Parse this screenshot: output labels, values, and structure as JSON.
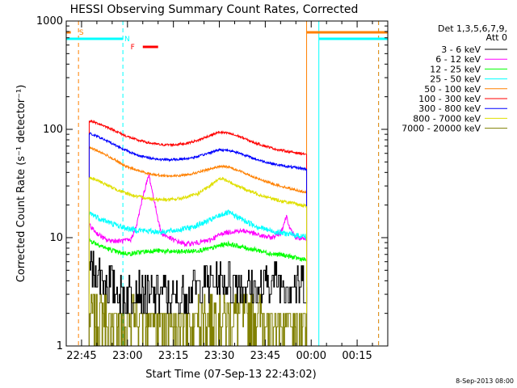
{
  "chart_data": {
    "type": "line",
    "title": "HESSI Observing Summary Count Rates, Corrected",
    "xlabel": "Start Time (07-Sep-13 22:43:02)",
    "ylabel": "Corrected Count Rate (s⁻¹ detector⁻¹)",
    "yscale": "log",
    "ylim": [
      1,
      1000
    ],
    "xlim_minutes": [
      -5,
      100
    ],
    "x_ticks": [
      "22:45",
      "23:00",
      "23:15",
      "23:30",
      "23:45",
      "00:00",
      "00:15"
    ],
    "x_tick_minutes": [
      0,
      15,
      30,
      45,
      60,
      75,
      90
    ],
    "y_ticks": [
      "1",
      "10",
      "100",
      "1000"
    ],
    "y_tick_values": [
      1,
      10,
      100,
      1000
    ],
    "legend_header": [
      "Det 1,3,5,6,7,9,",
      "Att 0"
    ],
    "legend_position": "right",
    "flag_labels": {
      "saa": "S",
      "night": "N",
      "flare": "F"
    },
    "flags": [
      {
        "label": "S",
        "color": "#ff8000",
        "start": -5,
        "end": -3.5
      },
      {
        "label": "N",
        "color": "#00ffff",
        "start": -5,
        "end": 13.5
      },
      {
        "label": "F",
        "color": "#ff0000",
        "start": 20,
        "end": 25
      },
      {
        "label": "S",
        "color": "#ff8000",
        "start": 73.5,
        "end": 100
      },
      {
        "label": "N",
        "color": "#00ffff",
        "start": 77.5,
        "end": 100
      }
    ],
    "vertical_markers": [
      {
        "color": "#ff8000",
        "minute": -1,
        "dashed": true
      },
      {
        "color": "#00ffff",
        "minute": 13.5,
        "dashed": true
      },
      {
        "color": "#ff8000",
        "minute": 73.5,
        "dashed": false
      },
      {
        "color": "#00ffff",
        "minute": 77.5,
        "dashed": false
      },
      {
        "color": "#00ffff",
        "minute": 97,
        "dashed": true
      },
      {
        "color": "#ff8000",
        "minute": 97,
        "dashed": true
      }
    ],
    "data_range_minutes": [
      2.5,
      73.5
    ],
    "series": [
      {
        "name": "3 - 6 keV",
        "color": "#000000",
        "noise": 0.28,
        "points": [
          [
            2.5,
            6
          ],
          [
            6,
            5
          ],
          [
            10,
            4
          ],
          [
            14,
            3.3
          ],
          [
            18,
            3.8
          ],
          [
            22,
            3.2
          ],
          [
            26,
            3.6
          ],
          [
            30,
            3
          ],
          [
            34,
            3.5
          ],
          [
            40,
            4.3
          ],
          [
            46,
            4.5
          ],
          [
            52,
            4.3
          ],
          [
            58,
            3.6
          ],
          [
            62,
            4.6
          ],
          [
            66,
            4.2
          ],
          [
            70,
            4.3
          ],
          [
            73.5,
            4
          ]
        ]
      },
      {
        "name": "6 - 12 keV",
        "color": "#ff00ff",
        "noise": 0.05,
        "points": [
          [
            2.5,
            13
          ],
          [
            5,
            11
          ],
          [
            8,
            9.5
          ],
          [
            12,
            9.3
          ],
          [
            16,
            9.5
          ],
          [
            18,
            13
          ],
          [
            20,
            24
          ],
          [
            22,
            38
          ],
          [
            24,
            20
          ],
          [
            26,
            11
          ],
          [
            30,
            9.5
          ],
          [
            34,
            8.7
          ],
          [
            38,
            9
          ],
          [
            42,
            9.5
          ],
          [
            46,
            11
          ],
          [
            50,
            11.5
          ],
          [
            54,
            11.5
          ],
          [
            58,
            10.5
          ],
          [
            62,
            10
          ],
          [
            65,
            11
          ],
          [
            67,
            16
          ],
          [
            68,
            12
          ],
          [
            70,
            10
          ],
          [
            73.5,
            9.5
          ]
        ]
      },
      {
        "name": "12 - 25 keV",
        "color": "#00ff00",
        "noise": 0.05,
        "points": [
          [
            2.5,
            9.5
          ],
          [
            8,
            8
          ],
          [
            12,
            7.3
          ],
          [
            16,
            7.1
          ],
          [
            20,
            7.4
          ],
          [
            24,
            7.6
          ],
          [
            30,
            7.4
          ],
          [
            36,
            7.5
          ],
          [
            42,
            7.9
          ],
          [
            46,
            8.6
          ],
          [
            48,
            8.8
          ],
          [
            50,
            8.5
          ],
          [
            54,
            8
          ],
          [
            58,
            7.6
          ],
          [
            62,
            7.1
          ],
          [
            66,
            6.9
          ],
          [
            70,
            6.5
          ],
          [
            73.5,
            6.2
          ]
        ]
      },
      {
        "name": "25 - 50 keV",
        "color": "#00ffff",
        "noise": 0.06,
        "points": [
          [
            2.5,
            17
          ],
          [
            6,
            15
          ],
          [
            10,
            13.5
          ],
          [
            14,
            12.3
          ],
          [
            18,
            11.8
          ],
          [
            22,
            11.5
          ],
          [
            26,
            11.3
          ],
          [
            30,
            11.6
          ],
          [
            36,
            12.5
          ],
          [
            42,
            14.5
          ],
          [
            46,
            16.5
          ],
          [
            48,
            17
          ],
          [
            50,
            16
          ],
          [
            54,
            14
          ],
          [
            58,
            12.5
          ],
          [
            62,
            11.5
          ],
          [
            66,
            11
          ],
          [
            70,
            10.5
          ],
          [
            73.5,
            10.3
          ]
        ]
      },
      {
        "name": "50 - 100 keV",
        "color": "#ff8000",
        "noise": 0.025,
        "points": [
          [
            2.5,
            68
          ],
          [
            6,
            62
          ],
          [
            10,
            54
          ],
          [
            14,
            46
          ],
          [
            18,
            42
          ],
          [
            22,
            39
          ],
          [
            26,
            37.5
          ],
          [
            30,
            37
          ],
          [
            34,
            38
          ],
          [
            38,
            40
          ],
          [
            42,
            43
          ],
          [
            45,
            45.5
          ],
          [
            48,
            45
          ],
          [
            52,
            41
          ],
          [
            56,
            36.5
          ],
          [
            60,
            33
          ],
          [
            64,
            30.5
          ],
          [
            68,
            28.5
          ],
          [
            73.5,
            26
          ]
        ]
      },
      {
        "name": "100 - 300 keV",
        "color": "#ff0000",
        "noise": 0.025,
        "points": [
          [
            2.5,
            120
          ],
          [
            6,
            112
          ],
          [
            10,
            100
          ],
          [
            14,
            88
          ],
          [
            18,
            80
          ],
          [
            22,
            75
          ],
          [
            26,
            72
          ],
          [
            30,
            72
          ],
          [
            34,
            74
          ],
          [
            38,
            79
          ],
          [
            42,
            88
          ],
          [
            45,
            94
          ],
          [
            48,
            92
          ],
          [
            52,
            85
          ],
          [
            56,
            76
          ],
          [
            60,
            70
          ],
          [
            64,
            65
          ],
          [
            68,
            62
          ],
          [
            73.5,
            59
          ]
        ]
      },
      {
        "name": "300 - 800 keV",
        "color": "#0000ff",
        "noise": 0.025,
        "points": [
          [
            2.5,
            92
          ],
          [
            6,
            84
          ],
          [
            10,
            74
          ],
          [
            14,
            65
          ],
          [
            18,
            58
          ],
          [
            22,
            54.5
          ],
          [
            26,
            52.5
          ],
          [
            30,
            52.5
          ],
          [
            34,
            53.5
          ],
          [
            38,
            56
          ],
          [
            42,
            61
          ],
          [
            45,
            65
          ],
          [
            48,
            64
          ],
          [
            52,
            60
          ],
          [
            56,
            54
          ],
          [
            60,
            50
          ],
          [
            64,
            47
          ],
          [
            68,
            45
          ],
          [
            73.5,
            43
          ]
        ]
      },
      {
        "name": "800 - 7000 keV",
        "color": "#dfdf00",
        "noise": 0.035,
        "points": [
          [
            2.5,
            36
          ],
          [
            6,
            33
          ],
          [
            10,
            29
          ],
          [
            14,
            26
          ],
          [
            18,
            24
          ],
          [
            22,
            23
          ],
          [
            26,
            22.5
          ],
          [
            30,
            22.5
          ],
          [
            34,
            23.5
          ],
          [
            38,
            25.5
          ],
          [
            42,
            30
          ],
          [
            44,
            34
          ],
          [
            46,
            35
          ],
          [
            50,
            31
          ],
          [
            54,
            27.5
          ],
          [
            58,
            25
          ],
          [
            62,
            23
          ],
          [
            66,
            21.5
          ],
          [
            70,
            20.5
          ],
          [
            73.5,
            19.5
          ]
        ]
      },
      {
        "name": "7000 - 20000 keV",
        "color": "#808000",
        "noise": 0,
        "points": [
          [
            2.5,
            2
          ],
          [
            73.5,
            2
          ]
        ]
      }
    ]
  },
  "footer": {
    "date_stamp": "8-Sep-2013 08:00"
  }
}
